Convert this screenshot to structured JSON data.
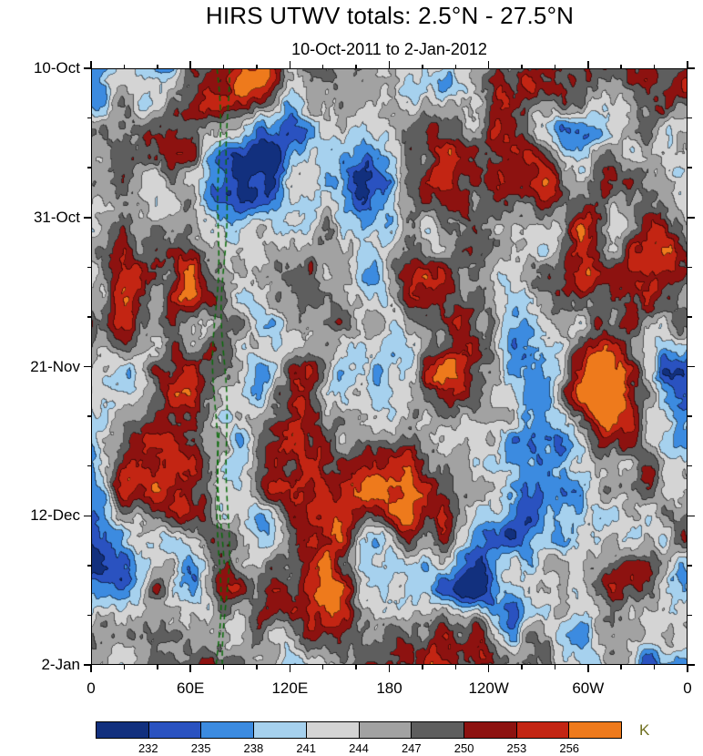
{
  "chart_data": {
    "type": "heatmap",
    "variant": "hovmoller-time-longitude-filled-contours",
    "title": "HIRS UTWV totals: 2.5°N - 27.5°N",
    "subtitle": "10-Oct-2011 to 2-Jan-2012",
    "x_axis": {
      "tick_labels": [
        "0",
        "60E",
        "120E",
        "180",
        "120W",
        "60W",
        "0"
      ],
      "tick_positions_deg": [
        0,
        60,
        120,
        180,
        240,
        300,
        360
      ],
      "minor_tick_interval_deg": 20,
      "range_deg": [
        0,
        360
      ]
    },
    "y_axis": {
      "tick_labels": [
        "10-Oct",
        "31-Oct",
        "21-Nov",
        "12-Dec",
        "2-Jan"
      ],
      "tick_positions_day": [
        0,
        21,
        42,
        63,
        84
      ],
      "minor_tick_interval_day": 7,
      "start_date": "10-Oct-2011",
      "end_date": "2-Jan-2012",
      "direction": "time-increases-downward"
    },
    "colorbar": {
      "units": "K",
      "units_color": "#6f6f1f",
      "tick_labels": [
        "232",
        "235",
        "238",
        "241",
        "244",
        "247",
        "250",
        "253",
        "256"
      ],
      "levels_K": [
        232,
        235,
        238,
        241,
        244,
        247,
        250,
        253,
        256
      ],
      "colors": [
        "#12307e",
        "#2a52c0",
        "#3c8be0",
        "#a6d1ee",
        "#d4d4d4",
        "#a2a2a2",
        "#5e5e5e",
        "#8d1210",
        "#c32513",
        "#ee7a1c"
      ]
    },
    "annotations": [
      {
        "type": "dashed-vertical-track",
        "color": "#0a6b0a",
        "longitude_deg": 76
      }
    ],
    "field": {
      "description": "filled-contour brightness-temperature field: grays 241-250 K dominate, dark-red/red/orange maxima above 250 K, blue minima below 241 K",
      "value_range_K": [
        229,
        262
      ]
    }
  }
}
